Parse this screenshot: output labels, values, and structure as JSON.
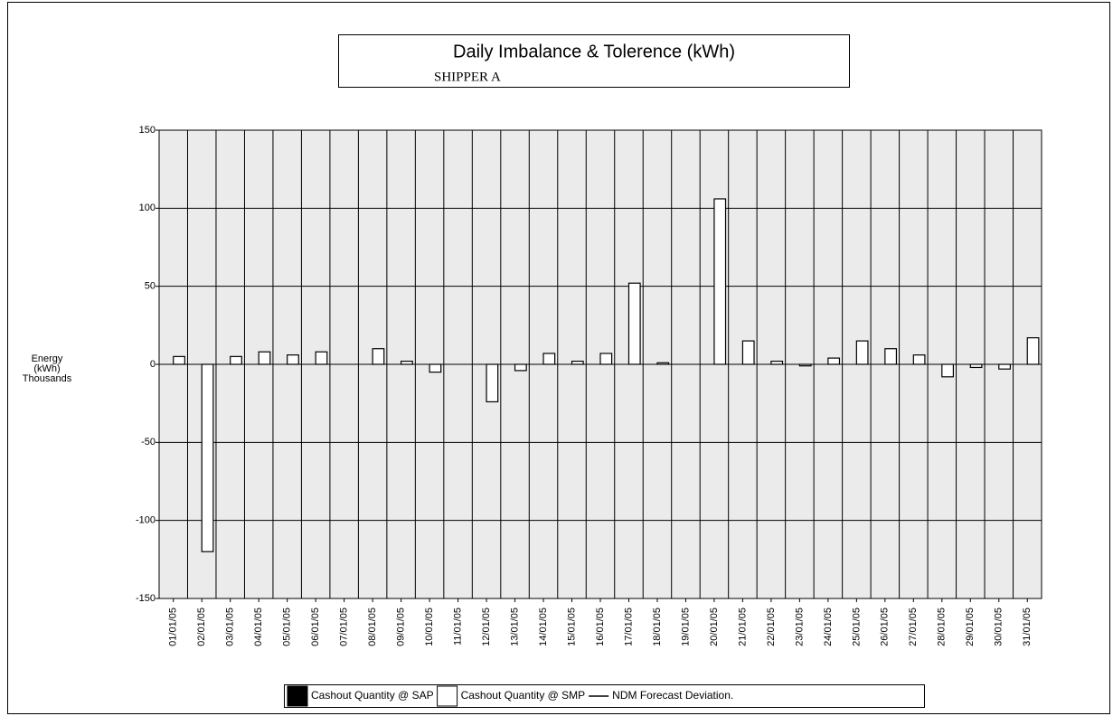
{
  "chart_data": {
    "type": "bar",
    "title": "Daily Imbalance & Tolerence (kWh)",
    "subtitle": "SHIPPER A",
    "y_label": [
      "Energy",
      "(kWh)",
      "Thousands"
    ],
    "categories": [
      "01/01/05",
      "02/01/05",
      "03/01/05",
      "04/01/05",
      "05/01/05",
      "06/01/05",
      "07/01/05",
      "08/01/05",
      "09/01/05",
      "10/01/05",
      "11/01/05",
      "12/01/05",
      "13/01/05",
      "14/01/05",
      "15/01/05",
      "16/01/05",
      "17/01/05",
      "18/01/05",
      "19/01/05",
      "20/01/05",
      "21/01/05",
      "22/01/05",
      "23/01/05",
      "24/01/05",
      "25/01/05",
      "26/01/05",
      "27/01/05",
      "28/01/05",
      "29/01/05",
      "30/01/05",
      "31/01/05"
    ],
    "series": [
      {
        "name": "Cashout Quantity @ SAP",
        "type": "bar",
        "color": "#000000",
        "values": [
          null,
          null,
          null,
          null,
          null,
          null,
          null,
          null,
          null,
          null,
          null,
          null,
          null,
          null,
          null,
          null,
          null,
          null,
          null,
          null,
          null,
          null,
          null,
          null,
          null,
          null,
          null,
          null,
          null,
          null,
          null
        ]
      },
      {
        "name": "Cashout Quantity @ SMP",
        "type": "bar",
        "color": "#ffffff",
        "values": [
          5,
          -120,
          5,
          8,
          6,
          8,
          0,
          10,
          2,
          -5,
          0,
          -24,
          -4,
          7,
          2,
          7,
          52,
          1,
          0,
          106,
          15,
          2,
          -1,
          4,
          15,
          10,
          6,
          -8,
          -2,
          -3,
          17
        ]
      },
      {
        "name": "NDM Forecast Deviation.",
        "type": "line",
        "color": "#000000",
        "values": [
          null,
          null,
          null,
          null,
          null,
          null,
          null,
          null,
          null,
          null,
          null,
          null,
          null,
          null,
          null,
          null,
          null,
          null,
          null,
          null,
          null,
          null,
          null,
          null,
          null,
          null,
          null,
          null,
          null,
          null,
          null
        ]
      }
    ],
    "ylim": [
      -150,
      150
    ],
    "yticks": [
      -150,
      -100,
      -50,
      0,
      50,
      100,
      150
    ],
    "grid": true,
    "plot_background": "#ebebeb",
    "legend": "bottom"
  }
}
